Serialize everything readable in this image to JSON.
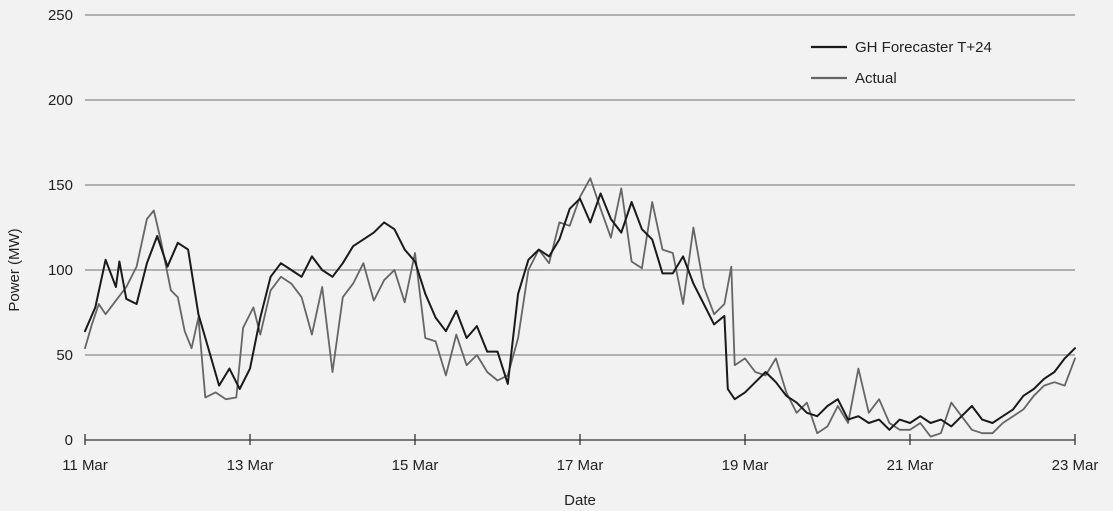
{
  "chart_data": {
    "type": "line",
    "title": "",
    "xlabel": "Date",
    "ylabel": "Power (MW)",
    "ylim": [
      0,
      250
    ],
    "yticks": [
      0,
      50,
      100,
      150,
      200,
      250
    ],
    "xlim": [
      "2024-03-11",
      "2024-03-23"
    ],
    "xticks": [
      {
        "date": "2024-03-11",
        "label": "11 Mar"
      },
      {
        "date": "2024-03-13",
        "label": "13 Mar"
      },
      {
        "date": "2024-03-15",
        "label": "15 Mar"
      },
      {
        "date": "2024-03-17",
        "label": "17 Mar"
      },
      {
        "date": "2024-03-19",
        "label": "19 Mar"
      },
      {
        "date": "2024-03-21",
        "label": "21 Mar"
      },
      {
        "date": "2024-03-23",
        "label": "23 Mar"
      }
    ],
    "grid": "horizontal",
    "legend_position": "top-right",
    "series": [
      {
        "name": "GH Forecaster T+24",
        "color": "#1a1a1a",
        "points": [
          [
            "2024-03-11T00:00",
            64
          ],
          [
            "2024-03-11T03:00",
            78
          ],
          [
            "2024-03-11T06:00",
            106
          ],
          [
            "2024-03-11T09:00",
            90
          ],
          [
            "2024-03-11T10:00",
            105
          ],
          [
            "2024-03-11T12:00",
            83
          ],
          [
            "2024-03-11T15:00",
            80
          ],
          [
            "2024-03-11T18:00",
            104
          ],
          [
            "2024-03-11T21:00",
            120
          ],
          [
            "2024-03-12T00:00",
            102
          ],
          [
            "2024-03-12T03:00",
            116
          ],
          [
            "2024-03-12T06:00",
            112
          ],
          [
            "2024-03-12T09:00",
            74
          ],
          [
            "2024-03-12T12:00",
            53
          ],
          [
            "2024-03-12T15:00",
            32
          ],
          [
            "2024-03-12T18:00",
            42
          ],
          [
            "2024-03-12T21:00",
            30
          ],
          [
            "2024-03-13T00:00",
            42
          ],
          [
            "2024-03-13T03:00",
            72
          ],
          [
            "2024-03-13T06:00",
            96
          ],
          [
            "2024-03-13T09:00",
            104
          ],
          [
            "2024-03-13T12:00",
            100
          ],
          [
            "2024-03-13T15:00",
            96
          ],
          [
            "2024-03-13T18:00",
            108
          ],
          [
            "2024-03-13T21:00",
            100
          ],
          [
            "2024-03-14T00:00",
            96
          ],
          [
            "2024-03-14T03:00",
            104
          ],
          [
            "2024-03-14T06:00",
            114
          ],
          [
            "2024-03-14T09:00",
            118
          ],
          [
            "2024-03-14T12:00",
            122
          ],
          [
            "2024-03-14T15:00",
            128
          ],
          [
            "2024-03-14T18:00",
            124
          ],
          [
            "2024-03-14T21:00",
            112
          ],
          [
            "2024-03-15T00:00",
            105
          ],
          [
            "2024-03-15T03:00",
            86
          ],
          [
            "2024-03-15T06:00",
            72
          ],
          [
            "2024-03-15T09:00",
            64
          ],
          [
            "2024-03-15T12:00",
            76
          ],
          [
            "2024-03-15T15:00",
            60
          ],
          [
            "2024-03-15T18:00",
            67
          ],
          [
            "2024-03-15T21:00",
            52
          ],
          [
            "2024-03-16T00:00",
            52
          ],
          [
            "2024-03-16T03:00",
            33
          ],
          [
            "2024-03-16T06:00",
            86
          ],
          [
            "2024-03-16T09:00",
            106
          ],
          [
            "2024-03-16T12:00",
            112
          ],
          [
            "2024-03-16T15:00",
            108
          ],
          [
            "2024-03-16T18:00",
            118
          ],
          [
            "2024-03-16T21:00",
            136
          ],
          [
            "2024-03-17T00:00",
            142
          ],
          [
            "2024-03-17T03:00",
            128
          ],
          [
            "2024-03-17T06:00",
            145
          ],
          [
            "2024-03-17T09:00",
            130
          ],
          [
            "2024-03-17T12:00",
            122
          ],
          [
            "2024-03-17T15:00",
            140
          ],
          [
            "2024-03-17T18:00",
            124
          ],
          [
            "2024-03-17T21:00",
            118
          ],
          [
            "2024-03-18T00:00",
            98
          ],
          [
            "2024-03-18T03:00",
            98
          ],
          [
            "2024-03-18T06:00",
            108
          ],
          [
            "2024-03-18T09:00",
            92
          ],
          [
            "2024-03-18T12:00",
            80
          ],
          [
            "2024-03-18T15:00",
            68
          ],
          [
            "2024-03-18T18:00",
            73
          ],
          [
            "2024-03-18T19:00",
            30
          ],
          [
            "2024-03-18T21:00",
            24
          ],
          [
            "2024-03-19T00:00",
            28
          ],
          [
            "2024-03-19T03:00",
            34
          ],
          [
            "2024-03-19T06:00",
            40
          ],
          [
            "2024-03-19T09:00",
            34
          ],
          [
            "2024-03-19T12:00",
            26
          ],
          [
            "2024-03-19T15:00",
            22
          ],
          [
            "2024-03-19T18:00",
            16
          ],
          [
            "2024-03-19T21:00",
            14
          ],
          [
            "2024-03-20T00:00",
            20
          ],
          [
            "2024-03-20T03:00",
            24
          ],
          [
            "2024-03-20T06:00",
            12
          ],
          [
            "2024-03-20T09:00",
            14
          ],
          [
            "2024-03-20T12:00",
            10
          ],
          [
            "2024-03-20T15:00",
            12
          ],
          [
            "2024-03-20T18:00",
            6
          ],
          [
            "2024-03-20T21:00",
            12
          ],
          [
            "2024-03-21T00:00",
            10
          ],
          [
            "2024-03-21T03:00",
            14
          ],
          [
            "2024-03-21T06:00",
            10
          ],
          [
            "2024-03-21T09:00",
            12
          ],
          [
            "2024-03-21T12:00",
            8
          ],
          [
            "2024-03-21T15:00",
            14
          ],
          [
            "2024-03-21T18:00",
            20
          ],
          [
            "2024-03-21T21:00",
            12
          ],
          [
            "2024-03-22T00:00",
            10
          ],
          [
            "2024-03-22T03:00",
            14
          ],
          [
            "2024-03-22T06:00",
            18
          ],
          [
            "2024-03-22T09:00",
            26
          ],
          [
            "2024-03-22T12:00",
            30
          ],
          [
            "2024-03-22T15:00",
            36
          ],
          [
            "2024-03-22T18:00",
            40
          ],
          [
            "2024-03-22T21:00",
            48
          ],
          [
            "2024-03-23T00:00",
            54
          ]
        ]
      },
      {
        "name": "Actual",
        "color": "#666666",
        "points": [
          [
            "2024-03-11T00:00",
            54
          ],
          [
            "2024-03-11T02:00",
            68
          ],
          [
            "2024-03-11T04:00",
            80
          ],
          [
            "2024-03-11T06:00",
            74
          ],
          [
            "2024-03-11T09:00",
            82
          ],
          [
            "2024-03-11T12:00",
            90
          ],
          [
            "2024-03-11T15:00",
            102
          ],
          [
            "2024-03-11T18:00",
            130
          ],
          [
            "2024-03-11T20:00",
            135
          ],
          [
            "2024-03-11T22:00",
            118
          ],
          [
            "2024-03-12T01:00",
            88
          ],
          [
            "2024-03-12T03:00",
            84
          ],
          [
            "2024-03-12T05:00",
            64
          ],
          [
            "2024-03-12T07:00",
            54
          ],
          [
            "2024-03-12T09:00",
            72
          ],
          [
            "2024-03-12T11:00",
            25
          ],
          [
            "2024-03-12T14:00",
            28
          ],
          [
            "2024-03-12T17:00",
            24
          ],
          [
            "2024-03-12T20:00",
            25
          ],
          [
            "2024-03-12T22:00",
            66
          ],
          [
            "2024-03-13T01:00",
            78
          ],
          [
            "2024-03-13T03:00",
            62
          ],
          [
            "2024-03-13T06:00",
            88
          ],
          [
            "2024-03-13T09:00",
            96
          ],
          [
            "2024-03-13T12:00",
            92
          ],
          [
            "2024-03-13T15:00",
            84
          ],
          [
            "2024-03-13T18:00",
            62
          ],
          [
            "2024-03-13T21:00",
            90
          ],
          [
            "2024-03-14T00:00",
            40
          ],
          [
            "2024-03-14T03:00",
            84
          ],
          [
            "2024-03-14T06:00",
            92
          ],
          [
            "2024-03-14T09:00",
            104
          ],
          [
            "2024-03-14T12:00",
            82
          ],
          [
            "2024-03-14T15:00",
            94
          ],
          [
            "2024-03-14T18:00",
            100
          ],
          [
            "2024-03-14T21:00",
            81
          ],
          [
            "2024-03-15T00:00",
            110
          ],
          [
            "2024-03-15T03:00",
            60
          ],
          [
            "2024-03-15T06:00",
            58
          ],
          [
            "2024-03-15T09:00",
            38
          ],
          [
            "2024-03-15T12:00",
            62
          ],
          [
            "2024-03-15T15:00",
            44
          ],
          [
            "2024-03-15T18:00",
            50
          ],
          [
            "2024-03-15T21:00",
            40
          ],
          [
            "2024-03-16T00:00",
            35
          ],
          [
            "2024-03-16T03:00",
            38
          ],
          [
            "2024-03-16T06:00",
            60
          ],
          [
            "2024-03-16T09:00",
            100
          ],
          [
            "2024-03-16T12:00",
            112
          ],
          [
            "2024-03-16T15:00",
            104
          ],
          [
            "2024-03-16T18:00",
            128
          ],
          [
            "2024-03-16T21:00",
            126
          ],
          [
            "2024-03-17T00:00",
            143
          ],
          [
            "2024-03-17T03:00",
            154
          ],
          [
            "2024-03-17T06:00",
            136
          ],
          [
            "2024-03-17T09:00",
            119
          ],
          [
            "2024-03-17T12:00",
            148
          ],
          [
            "2024-03-17T15:00",
            105
          ],
          [
            "2024-03-17T18:00",
            101
          ],
          [
            "2024-03-17T21:00",
            140
          ],
          [
            "2024-03-18T00:00",
            112
          ],
          [
            "2024-03-18T03:00",
            110
          ],
          [
            "2024-03-18T06:00",
            80
          ],
          [
            "2024-03-18T09:00",
            125
          ],
          [
            "2024-03-18T12:00",
            90
          ],
          [
            "2024-03-18T15:00",
            74
          ],
          [
            "2024-03-18T18:00",
            80
          ],
          [
            "2024-03-18T20:00",
            102
          ],
          [
            "2024-03-18T21:00",
            44
          ],
          [
            "2024-03-19T00:00",
            48
          ],
          [
            "2024-03-19T03:00",
            40
          ],
          [
            "2024-03-19T06:00",
            38
          ],
          [
            "2024-03-19T09:00",
            48
          ],
          [
            "2024-03-19T12:00",
            28
          ],
          [
            "2024-03-19T15:00",
            16
          ],
          [
            "2024-03-19T18:00",
            22
          ],
          [
            "2024-03-19T21:00",
            4
          ],
          [
            "2024-03-20T00:00",
            8
          ],
          [
            "2024-03-20T03:00",
            20
          ],
          [
            "2024-03-20T06:00",
            10
          ],
          [
            "2024-03-20T09:00",
            42
          ],
          [
            "2024-03-20T12:00",
            16
          ],
          [
            "2024-03-20T15:00",
            24
          ],
          [
            "2024-03-20T18:00",
            10
          ],
          [
            "2024-03-20T21:00",
            6
          ],
          [
            "2024-03-21T00:00",
            6
          ],
          [
            "2024-03-21T03:00",
            10
          ],
          [
            "2024-03-21T06:00",
            2
          ],
          [
            "2024-03-21T09:00",
            4
          ],
          [
            "2024-03-21T12:00",
            22
          ],
          [
            "2024-03-21T15:00",
            14
          ],
          [
            "2024-03-21T18:00",
            6
          ],
          [
            "2024-03-21T21:00",
            4
          ],
          [
            "2024-03-22T00:00",
            4
          ],
          [
            "2024-03-22T03:00",
            10
          ],
          [
            "2024-03-22T06:00",
            14
          ],
          [
            "2024-03-22T09:00",
            18
          ],
          [
            "2024-03-22T12:00",
            26
          ],
          [
            "2024-03-22T15:00",
            32
          ],
          [
            "2024-03-22T18:00",
            34
          ],
          [
            "2024-03-22T21:00",
            32
          ],
          [
            "2024-03-23T00:00",
            48
          ]
        ]
      }
    ]
  }
}
